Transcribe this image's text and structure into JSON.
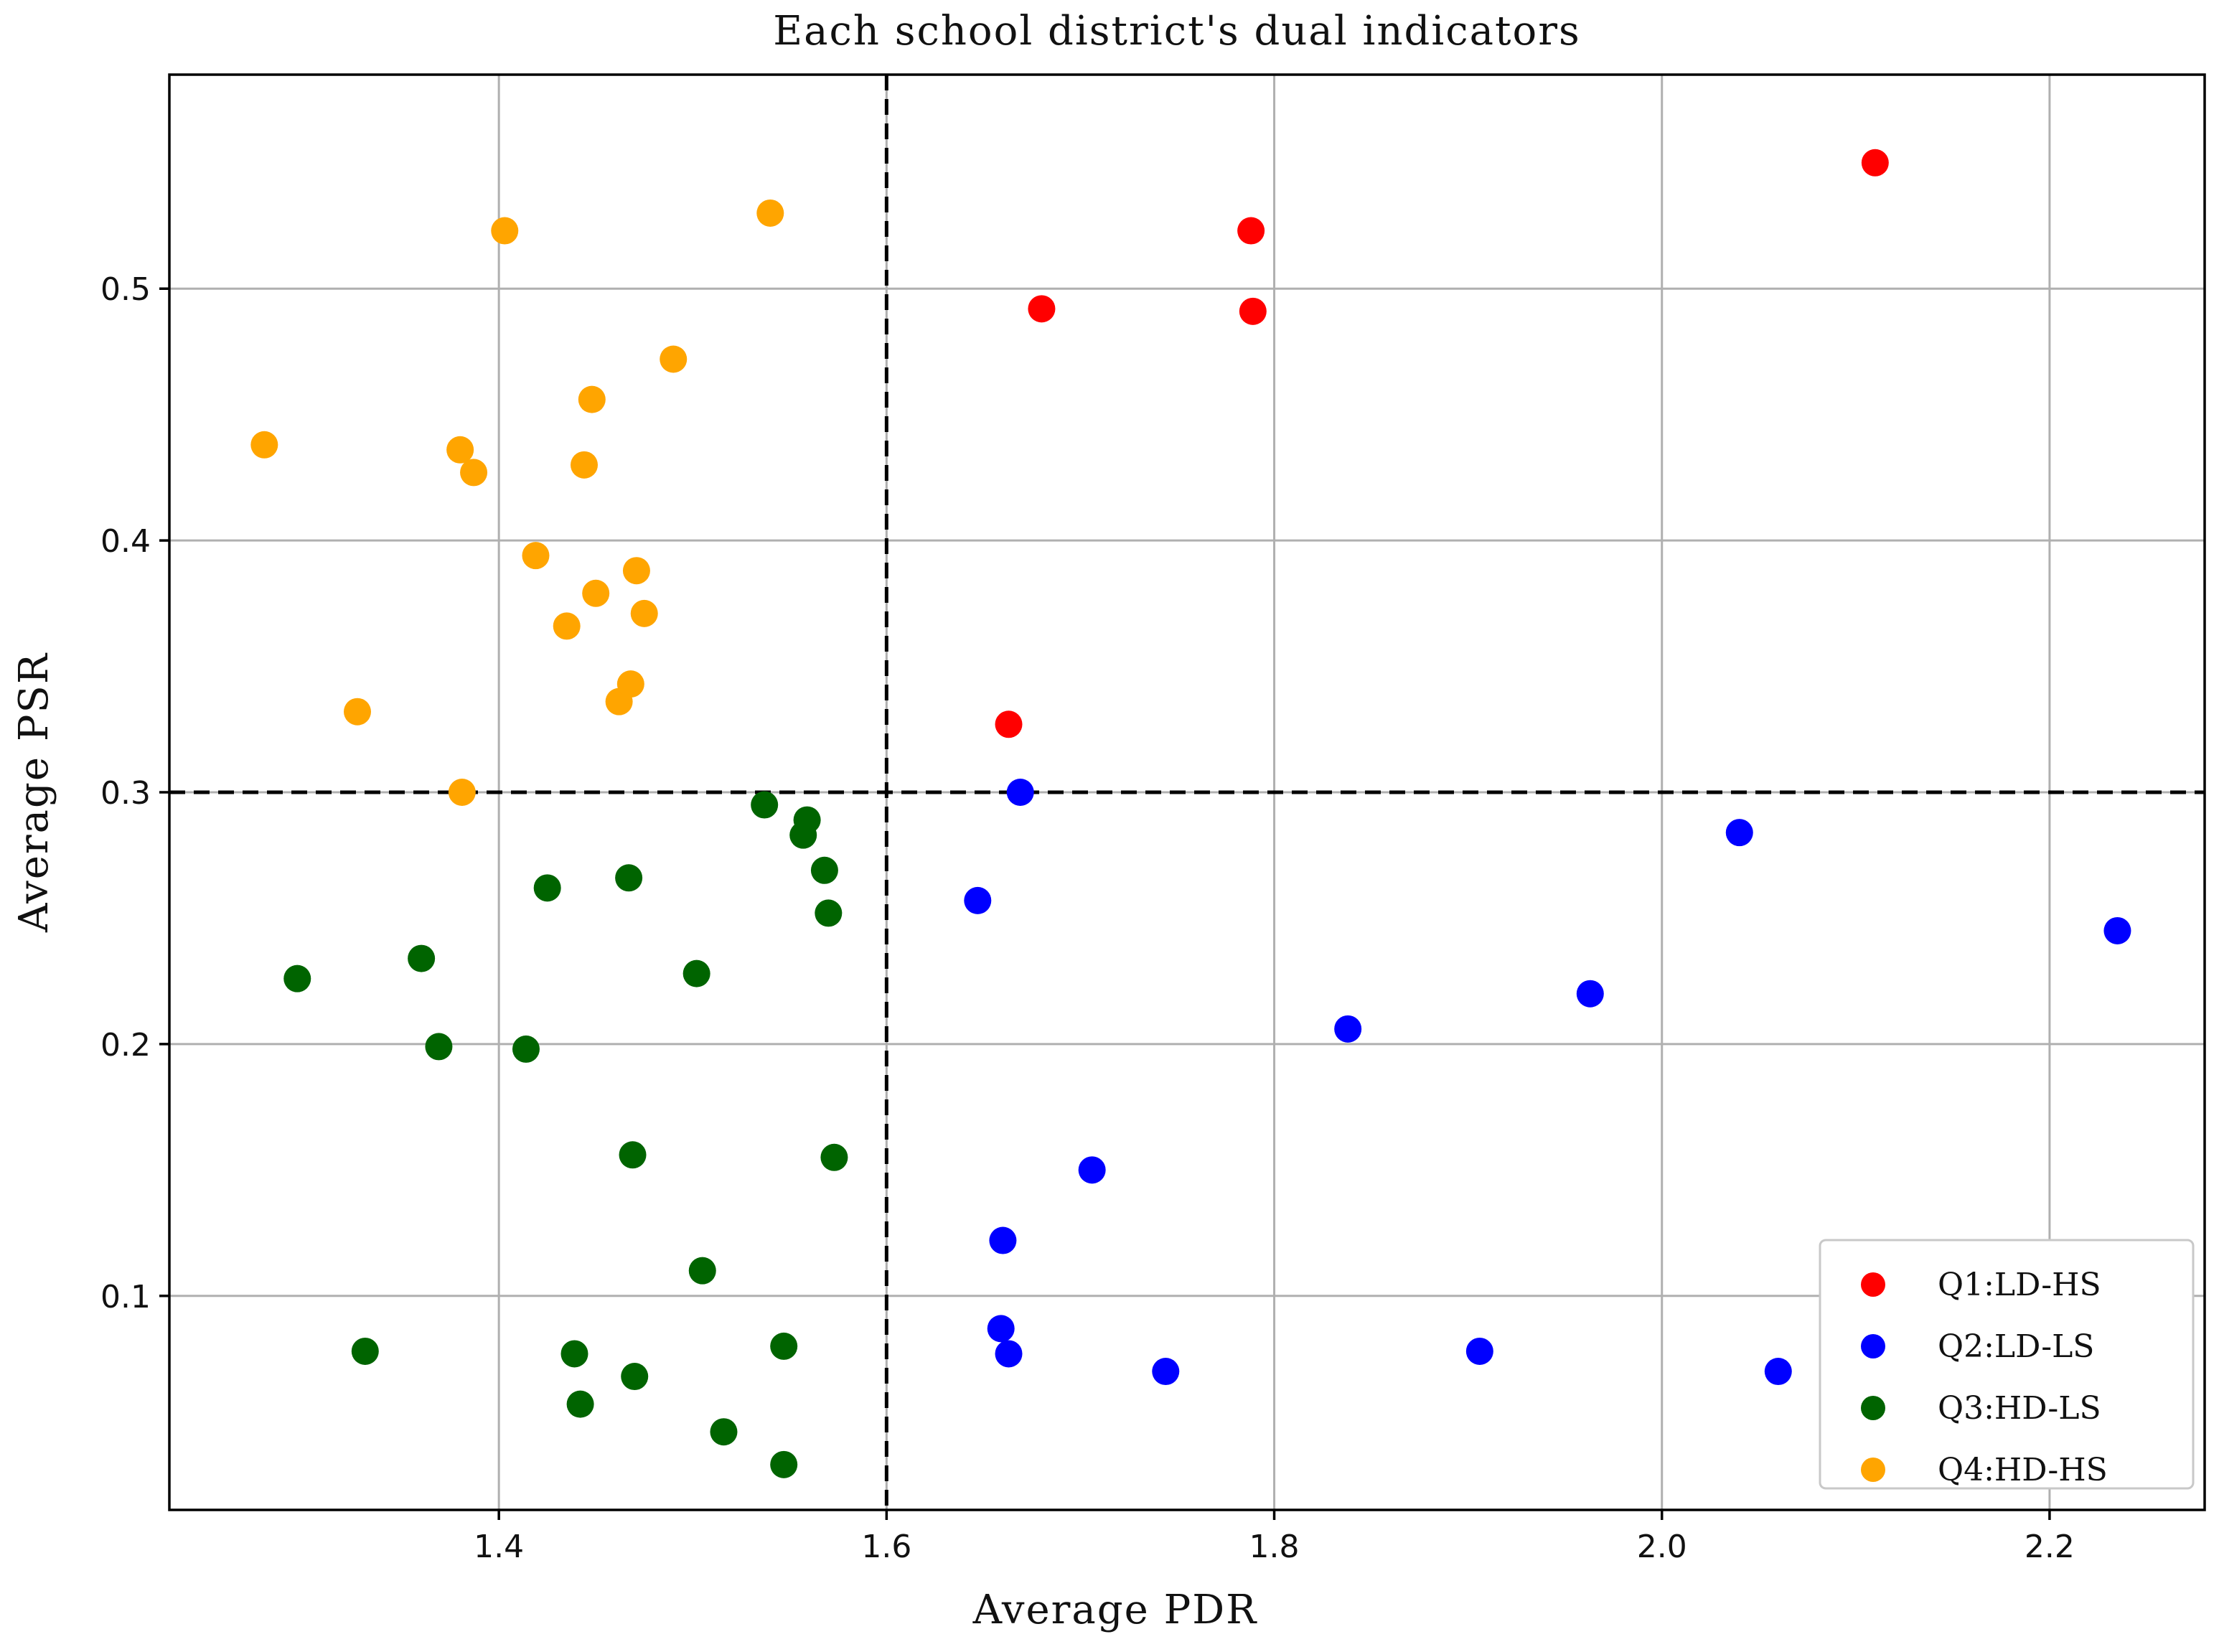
{
  "chart_data": {
    "type": "scatter",
    "title": "Each school district's dual indicators",
    "xlabel": "Average PDR",
    "ylabel": "Average PSR",
    "xlim": [
      1.23,
      2.28
    ],
    "ylim": [
      0.015,
      0.585
    ],
    "xticks": [
      1.4,
      1.6,
      1.8,
      2.0,
      2.2
    ],
    "xtick_labels": [
      "1.4",
      "1.6",
      "1.8",
      "2.0",
      "2.2"
    ],
    "yticks": [
      0.1,
      0.2,
      0.3,
      0.4,
      0.5
    ],
    "ytick_labels": [
      "0.1",
      "0.2",
      "0.3",
      "0.4",
      "0.5"
    ],
    "grid": true,
    "reference_lines": {
      "x": 1.6,
      "y": 0.3
    },
    "legend_position": "bottom-right",
    "series": [
      {
        "name": "Q1:LD-HS",
        "color": "#ff0000",
        "points": [
          [
            1.663,
            0.327
          ],
          [
            1.68,
            0.492
          ],
          [
            1.788,
            0.523
          ],
          [
            1.789,
            0.491
          ],
          [
            2.11,
            0.55
          ]
        ]
      },
      {
        "name": "Q2:LD-LS",
        "color": "#0000ff",
        "points": [
          [
            1.669,
            0.3
          ],
          [
            1.647,
            0.257
          ],
          [
            1.66,
            0.122
          ],
          [
            1.659,
            0.087
          ],
          [
            1.663,
            0.077
          ],
          [
            1.706,
            0.15
          ],
          [
            1.744,
            0.07
          ],
          [
            1.838,
            0.206
          ],
          [
            1.906,
            0.078
          ],
          [
            1.963,
            0.22
          ],
          [
            2.04,
            0.284
          ],
          [
            2.06,
            0.07
          ],
          [
            2.235,
            0.245
          ]
        ]
      },
      {
        "name": "Q3:HD-LS",
        "color": "#006400",
        "points": [
          [
            1.296,
            0.226
          ],
          [
            1.331,
            0.078
          ],
          [
            1.36,
            0.234
          ],
          [
            1.369,
            0.199
          ],
          [
            1.414,
            0.198
          ],
          [
            1.425,
            0.262
          ],
          [
            1.439,
            0.077
          ],
          [
            1.442,
            0.057
          ],
          [
            1.467,
            0.266
          ],
          [
            1.469,
            0.156
          ],
          [
            1.47,
            0.068
          ],
          [
            1.502,
            0.228
          ],
          [
            1.505,
            0.11
          ],
          [
            1.516,
            0.046
          ],
          [
            1.537,
            0.295
          ],
          [
            1.547,
            0.08
          ],
          [
            1.547,
            0.033
          ],
          [
            1.557,
            0.283
          ],
          [
            1.559,
            0.289
          ],
          [
            1.568,
            0.269
          ],
          [
            1.57,
            0.252
          ],
          [
            1.573,
            0.155
          ]
        ]
      },
      {
        "name": "Q4:HD-HS",
        "color": "#ffa500",
        "points": [
          [
            1.279,
            0.438
          ],
          [
            1.327,
            0.332
          ],
          [
            1.38,
            0.436
          ],
          [
            1.381,
            0.3
          ],
          [
            1.387,
            0.427
          ],
          [
            1.403,
            0.523
          ],
          [
            1.419,
            0.394
          ],
          [
            1.435,
            0.366
          ],
          [
            1.444,
            0.43
          ],
          [
            1.448,
            0.456
          ],
          [
            1.45,
            0.379
          ],
          [
            1.462,
            0.336
          ],
          [
            1.468,
            0.343
          ],
          [
            1.471,
            0.388
          ],
          [
            1.475,
            0.371
          ],
          [
            1.49,
            0.472
          ],
          [
            1.54,
            0.53
          ]
        ]
      }
    ]
  }
}
